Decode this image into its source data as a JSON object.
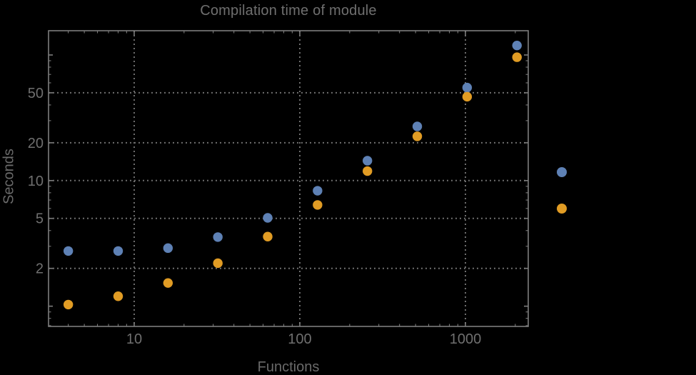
{
  "chart_data": {
    "type": "scatter",
    "title": "Compilation time of module",
    "xlabel": "Functions",
    "ylabel": "Seconds",
    "x_scale": "log",
    "y_scale": "log",
    "xlim": [
      3.04,
      2395
    ],
    "ylim": [
      0.69,
      156
    ],
    "grid": "dotted lines at labeled major ticks, frame ticks mirrored on all four sides",
    "legend_position": "outside-right, marker dots only (no visible text labels)",
    "x": [
      4,
      8,
      16,
      32,
      64,
      128,
      256,
      512,
      1024,
      2048
    ],
    "series": [
      {
        "name": "series-blue",
        "color": "#5e81b5",
        "values": [
          2.75,
          2.75,
          2.9,
          3.55,
          5.05,
          8.3,
          14.4,
          27,
          55,
          119
        ]
      },
      {
        "name": "series-orange",
        "color": "#e19c24",
        "values": [
          1.03,
          1.2,
          1.53,
          2.2,
          3.58,
          6.4,
          11.9,
          22.5,
          46.5,
          96
        ]
      }
    ],
    "x_ticks": [
      {
        "value": 10,
        "label": "10"
      },
      {
        "value": 100,
        "label": "100"
      },
      {
        "value": 1000,
        "label": "1000"
      }
    ],
    "y_ticks": [
      {
        "value": 2,
        "label": "2"
      },
      {
        "value": 5,
        "label": "5"
      },
      {
        "value": 10,
        "label": "10"
      },
      {
        "value": 20,
        "label": "20"
      },
      {
        "value": 50,
        "label": "50"
      }
    ],
    "y_major_unlabeled": [
      1,
      100
    ],
    "legend_markers": [
      {
        "color": "#5e81b5"
      },
      {
        "color": "#e19c24"
      }
    ],
    "colors": {
      "background": "#000000",
      "text": "#6f6f6f",
      "frame": "#7d7d7d",
      "grid": "#6e6e6e",
      "series_blue": "#5e81b5",
      "series_orange": "#e19c24"
    }
  }
}
